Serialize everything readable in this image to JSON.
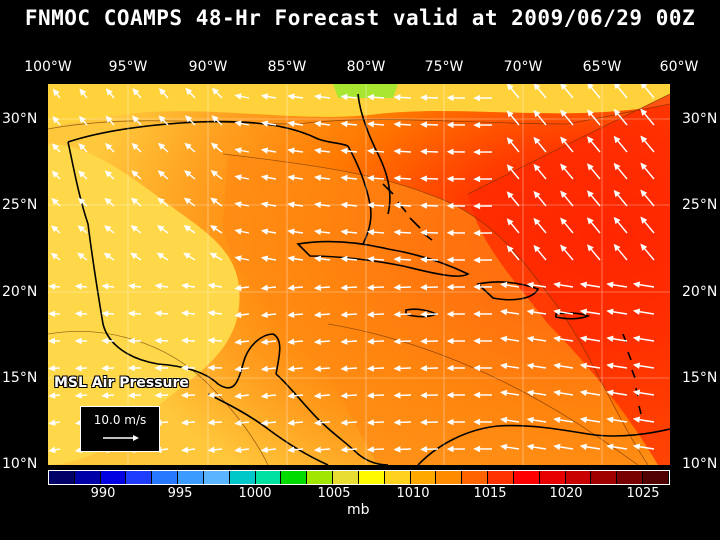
{
  "title": "FNMOC COAMPS 48-Hr Forecast valid at 2009/06/29 00Z",
  "longitude_labels": [
    "100°W",
    "95°W",
    "90°W",
    "85°W",
    "80°W",
    "75°W",
    "70°W",
    "65°W",
    "60°W"
  ],
  "latitude_labels": [
    "30°N",
    "25°N",
    "20°N",
    "15°N",
    "10°N"
  ],
  "field_label": "MSL Air Pressure",
  "reference_vector": {
    "label": "10.0 m/s",
    "arrow_icon": "arrow-right-icon"
  },
  "colorbar": {
    "tick_labels": [
      "990",
      "995",
      "1000",
      "1005",
      "1010",
      "1015",
      "1020",
      "1025"
    ],
    "units": "mb",
    "colors": [
      "#000066",
      "#0000a8",
      "#0000e0",
      "#1e3cff",
      "#2878ff",
      "#3c9bff",
      "#5ab4ff",
      "#00c8c8",
      "#00e0a0",
      "#00dc00",
      "#a0e600",
      "#e6dc32",
      "#fffa00",
      "#ffd21e",
      "#ffa800",
      "#ff8c00",
      "#ff6400",
      "#ff3200",
      "#ff0000",
      "#e60000",
      "#c80000",
      "#a00000",
      "#780000",
      "#500000"
    ]
  },
  "map": {
    "region": "Gulf of Mexico and Caribbean",
    "lon_range": [
      -100,
      -60
    ],
    "lat_range": [
      10,
      32
    ]
  }
}
